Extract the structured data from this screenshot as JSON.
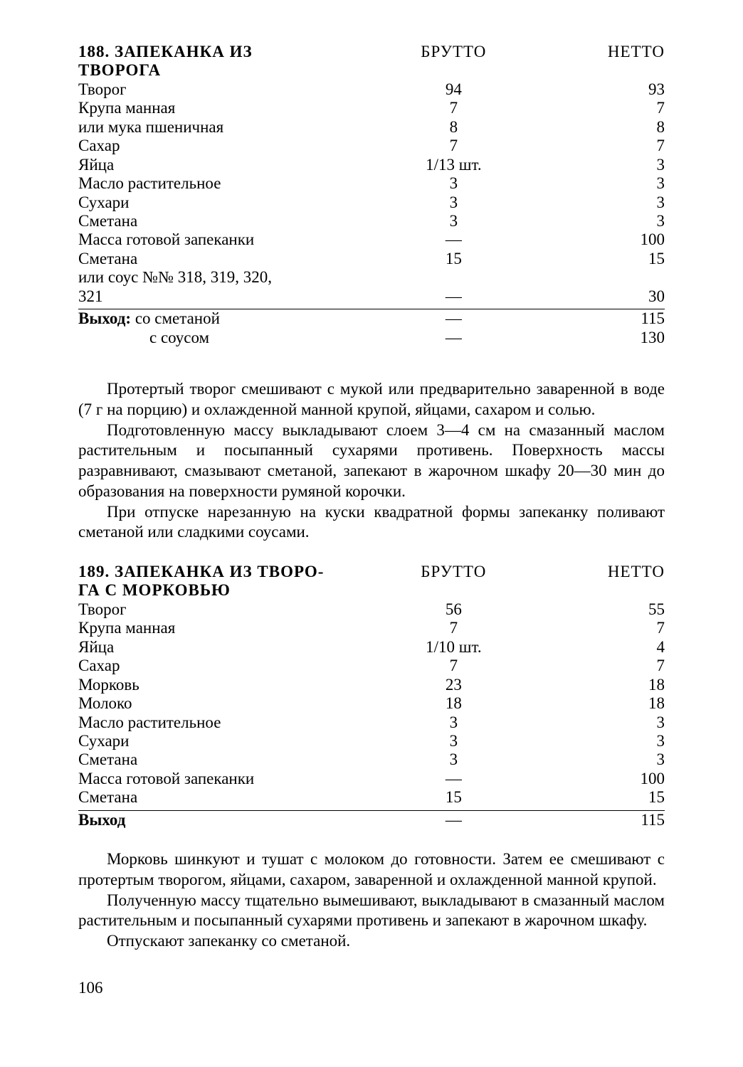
{
  "recipe1": {
    "title_line1": "188. ЗАПЕКАНКА ИЗ",
    "title_line2": "ТВОРОГА",
    "header_brutto": "БРУТТО",
    "header_netto": "НЕТТО",
    "rows": [
      {
        "name": "Творог",
        "brutto": "94",
        "netto": "93"
      },
      {
        "name": "Крупа манная",
        "brutto": "7",
        "netto": "7"
      },
      {
        "name": "или мука пшеничная",
        "indent": true,
        "brutto": "8",
        "netto": "8"
      },
      {
        "name": "Сахар",
        "brutto": "7",
        "netto": "7"
      },
      {
        "name": "Яйца",
        "brutto": "1/13 шт.",
        "netto": "3"
      },
      {
        "name": "Масло растительное",
        "brutto": "3",
        "netto": "3"
      },
      {
        "name": "Сухари",
        "brutto": "3",
        "netto": "3"
      },
      {
        "name": "Сметана",
        "brutto": "3",
        "netto": "3"
      },
      {
        "name": "Масса готовой запеканки",
        "indent": true,
        "brutto": "—",
        "netto": "100"
      },
      {
        "name": "Сметана",
        "brutto": "15",
        "netto": "15"
      },
      {
        "name": "или соус №№ 318, 319, 320,",
        "indent": true,
        "brutto": "",
        "netto": ""
      },
      {
        "name": "321",
        "indent": true,
        "brutto": "—",
        "netto": "30"
      }
    ],
    "yield_label": "Выход:",
    "yield_rows": [
      {
        "name": "со сметаной",
        "brutto": "—",
        "netto": "115"
      },
      {
        "name": "с соусом",
        "indent": true,
        "brutto": "—",
        "netto": "130"
      }
    ]
  },
  "text1": {
    "p1": "Протертый творог смешивают с мукой или предварительно заваренной в воде (7 г на порцию) и охлажденной манной крупой, яйцами, сахаром и солью.",
    "p2": "Подготовленную массу выкладывают слоем 3—4 см на смазанный маслом растительным и посыпанный сухарями противень. Поверхность массы разравнивают, смазывают сметаной, запекают в жарочном шкафу 20—30 мин до образования на поверхности румяной корочки.",
    "p3": "При отпуске нарезанную на куски квадратной формы запеканку поливают сметаной или сладкими соусами."
  },
  "recipe2": {
    "title_line1": "189. ЗАПЕКАНКА ИЗ ТВОРО-",
    "title_line2": "ГА С МОРКОВЬЮ",
    "header_brutto": "БРУТТО",
    "header_netto": "НЕТТО",
    "rows": [
      {
        "name": "Творог",
        "brutto": "56",
        "netto": "55"
      },
      {
        "name": "Крупа манная",
        "brutto": "7",
        "netto": "7"
      },
      {
        "name": "Яйца",
        "brutto": "1/10 шт.",
        "netto": "4"
      },
      {
        "name": "Сахар",
        "brutto": "7",
        "netto": "7"
      },
      {
        "name": "Морковь",
        "brutto": "23",
        "netto": "18"
      },
      {
        "name": "Молоко",
        "brutto": "18",
        "netto": "18"
      },
      {
        "name": "Масло растительное",
        "brutto": "3",
        "netto": "3"
      },
      {
        "name": "Сухари",
        "brutto": "3",
        "netto": "3"
      },
      {
        "name": "Сметана",
        "brutto": "3",
        "netto": "3"
      },
      {
        "name": "Масса готовой запеканки",
        "indent": true,
        "brutto": "—",
        "netto": "100"
      },
      {
        "name": "Сметана",
        "brutto": "15",
        "netto": "15"
      }
    ],
    "yield_label": "Выход",
    "yield_rows": [
      {
        "name": "",
        "brutto": "—",
        "netto": "115"
      }
    ]
  },
  "text2": {
    "p1": "Морковь шинкуют и тушат с молоком до готовности. Затем ее смешивают с протертым творогом, яйцами, сахаром, заваренной и охлажденной манной крупой.",
    "p2": "Полученную массу тщательно вымешивают, выкладывают в смазанный маслом растительным и посыпанный сухарями противень и запекают в жарочном шкафу.",
    "p3": "Отпускают запеканку со сметаной."
  },
  "page_number": "106"
}
